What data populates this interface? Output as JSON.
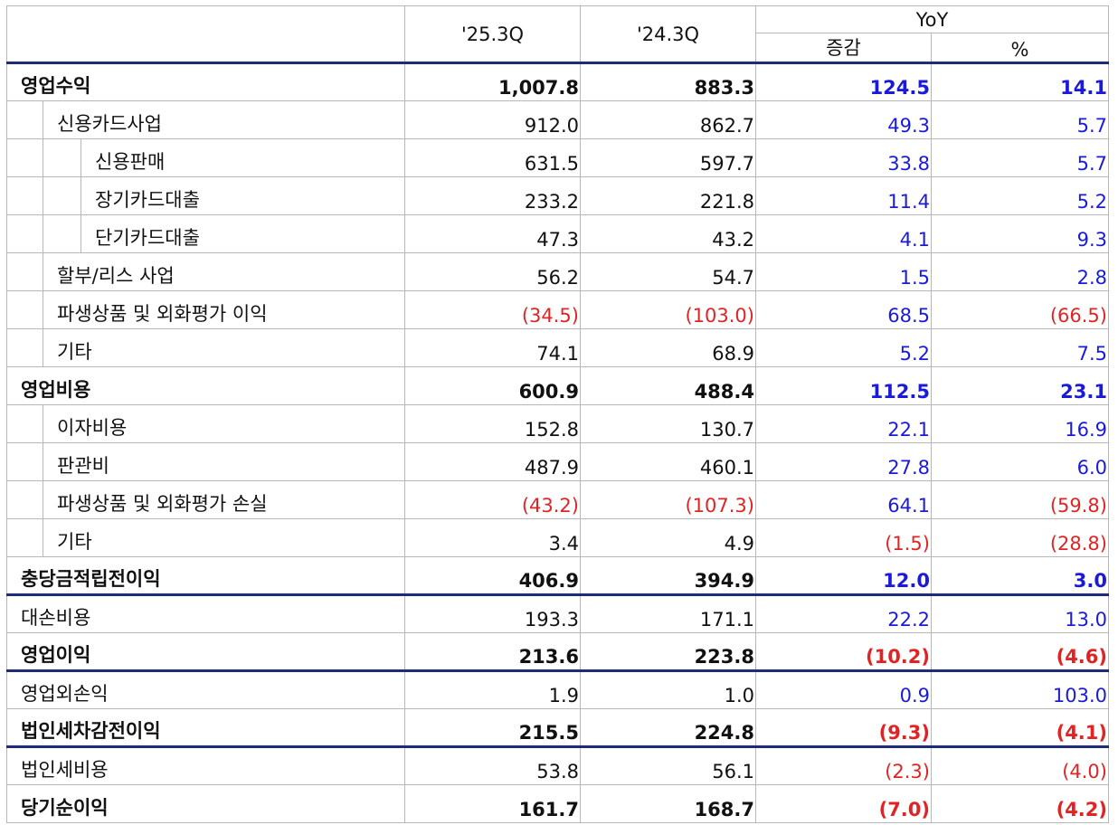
{
  "header": {
    "col_2025": "'25.3Q",
    "col_2024": "'24.3Q",
    "yoy": "YoY",
    "change": "증감",
    "percent": "%"
  },
  "rows": [
    {
      "label": "영업수익",
      "v25": "1,007.8",
      "v24": "883.3",
      "chg": "124.5",
      "pct": "14.1"
    },
    {
      "label": "신용카드사업",
      "v25": "912.0",
      "v24": "862.7",
      "chg": "49.3",
      "pct": "5.7"
    },
    {
      "label": "신용판매",
      "v25": "631.5",
      "v24": "597.7",
      "chg": "33.8",
      "pct": "5.7"
    },
    {
      "label": "장기카드대출",
      "v25": "233.2",
      "v24": "221.8",
      "chg": "11.4",
      "pct": "5.2"
    },
    {
      "label": "단기카드대출",
      "v25": "47.3",
      "v24": "43.2",
      "chg": "4.1",
      "pct": "9.3"
    },
    {
      "label": "할부/리스 사업",
      "v25": "56.2",
      "v24": "54.7",
      "chg": "1.5",
      "pct": "2.8"
    },
    {
      "label": "파생상품 및 외화평가 이익",
      "v25": "(34.5)",
      "v24": "(103.0)",
      "chg": "68.5",
      "pct": "(66.5)"
    },
    {
      "label": "기타",
      "v25": "74.1",
      "v24": "68.9",
      "chg": "5.2",
      "pct": "7.5"
    },
    {
      "label": "영업비용",
      "v25": "600.9",
      "v24": "488.4",
      "chg": "112.5",
      "pct": "23.1"
    },
    {
      "label": "이자비용",
      "v25": "152.8",
      "v24": "130.7",
      "chg": "22.1",
      "pct": "16.9"
    },
    {
      "label": "판관비",
      "v25": "487.9",
      "v24": "460.1",
      "chg": "27.8",
      "pct": "6.0"
    },
    {
      "label": "파생상품 및 외화평가 손실",
      "v25": "(43.2)",
      "v24": "(107.3)",
      "chg": "64.1",
      "pct": "(59.8)"
    },
    {
      "label": "기타",
      "v25": "3.4",
      "v24": "4.9",
      "chg": "(1.5)",
      "pct": "(28.8)"
    },
    {
      "label": "충당금적립전이익",
      "v25": "406.9",
      "v24": "394.9",
      "chg": "12.0",
      "pct": "3.0"
    },
    {
      "label": "대손비용",
      "v25": "193.3",
      "v24": "171.1",
      "chg": "22.2",
      "pct": "13.0"
    },
    {
      "label": "영업이익",
      "v25": "213.6",
      "v24": "223.8",
      "chg": "(10.2)",
      "pct": "(4.6)"
    },
    {
      "label": "영업외손익",
      "v25": "1.9",
      "v24": "1.0",
      "chg": "0.9",
      "pct": "103.0"
    },
    {
      "label": "법인세차감전이익",
      "v25": "215.5",
      "v24": "224.8",
      "chg": "(9.3)",
      "pct": "(4.1)"
    },
    {
      "label": "법인세비용",
      "v25": "53.8",
      "v24": "56.1",
      "chg": "(2.3)",
      "pct": "(4.0)"
    },
    {
      "label": "당기순이익",
      "v25": "161.7",
      "v24": "168.7",
      "chg": "(7.0)",
      "pct": "(4.2)"
    }
  ],
  "colors": {
    "positive": "#1a1adb",
    "negative": "#e02424",
    "navy_rule": "#1f2a7a",
    "grid": "#b7b7b7"
  }
}
